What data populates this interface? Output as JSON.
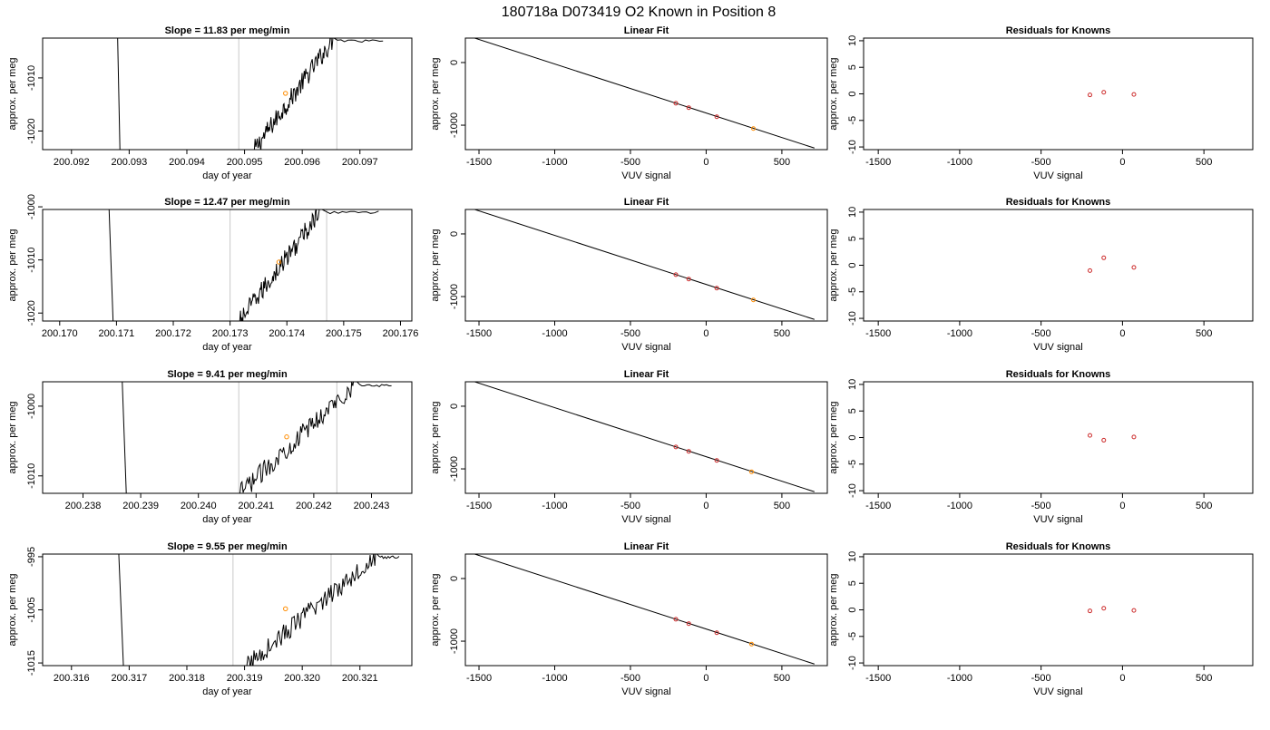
{
  "title": "180718a     D073419   O2 Known in Position  8",
  "colors": {
    "trace": "#000000",
    "marker": "#ff8c00",
    "residual": "#cc2a2a",
    "vline": "#c8c8c8",
    "frame": "#000000"
  },
  "chart_data": [
    {
      "row": 1,
      "time_panel": {
        "type": "line",
        "title": "Slope =  11.83  per meg/min",
        "xlabel": "day of year",
        "ylabel": "approx. per meg",
        "xlim": [
          200.0915,
          200.0979
        ],
        "ylim": [
          -1023.5,
          -1002.5
        ],
        "xticks": [
          {
            "v": 200.092,
            "label": "200.092"
          },
          {
            "v": 200.093,
            "label": "200.093"
          },
          {
            "v": 200.094,
            "label": "200.094"
          },
          {
            "v": 200.095,
            "label": "200.095"
          },
          {
            "v": 200.096,
            "label": "200.096"
          },
          {
            "v": 200.097,
            "label": "200.097"
          }
        ],
        "yticks": [
          {
            "v": -1020,
            "label": "-1020"
          },
          {
            "v": -1010,
            "label": "-1010"
          }
        ],
        "vlines": [
          200.0949,
          200.0966
        ],
        "drop": [
          [
            200.0928,
            -1002.5
          ],
          [
            200.09284,
            -1023.5
          ]
        ],
        "trace_start": [
          200.09517,
          -1023.5
        ],
        "trace_end": [
          200.09655,
          -1002.5
        ],
        "marker": [
          200.09571,
          -1012.9
        ]
      },
      "fit_panel": {
        "type": "scatter",
        "title": "Linear Fit",
        "xlabel": "VUV signal",
        "ylabel": "approx. per meg",
        "xlim": [
          -1590,
          800
        ],
        "ylim": [
          -1390,
          390
        ],
        "xticks": [
          {
            "v": -1500,
            "label": "-1500"
          },
          {
            "v": -1000,
            "label": "-1000"
          },
          {
            "v": -500,
            "label": "-500"
          },
          {
            "v": 0,
            "label": "0"
          },
          {
            "v": 500,
            "label": "500"
          }
        ],
        "yticks": [
          {
            "v": 0,
            "label": "0"
          },
          {
            "v": -1000,
            "label": "-1000"
          }
        ],
        "line": [
          [
            -1535,
            395
          ],
          [
            715,
            -1365
          ]
        ],
        "knowns": [
          [
            -200,
            -650
          ],
          [
            -115,
            -720
          ],
          [
            70,
            -865
          ]
        ],
        "sample": [
          [
            312,
            -1054
          ]
        ]
      },
      "resid_panel": {
        "type": "scatter",
        "title": "Residuals for Knowns",
        "xlabel": "VUV signal",
        "ylabel": "approx. per meg",
        "xlim": [
          -1590,
          800
        ],
        "ylim": [
          -10.5,
          10.5
        ],
        "xticks": [
          {
            "v": -1500,
            "label": "-1500"
          },
          {
            "v": -1000,
            "label": "-1000"
          },
          {
            "v": -500,
            "label": "-500"
          },
          {
            "v": 0,
            "label": "0"
          },
          {
            "v": 500,
            "label": "500"
          }
        ],
        "yticks": [
          {
            "v": 10,
            "label": "10"
          },
          {
            "v": 5,
            "label": "5"
          },
          {
            "v": 0,
            "label": "0"
          },
          {
            "v": -5,
            "label": "-5"
          },
          {
            "v": -10,
            "label": "-10"
          }
        ],
        "points": [
          [
            -200,
            -0.2
          ],
          [
            -115,
            0.3
          ],
          [
            70,
            -0.1
          ]
        ]
      }
    },
    {
      "row": 2,
      "time_panel": {
        "type": "line",
        "title": "Slope =  12.47  per meg/min",
        "xlabel": "day of year",
        "ylabel": "approx. per meg",
        "xlim": [
          200.1697,
          200.1762
        ],
        "ylim": [
          -1021.5,
          -1000.5
        ],
        "xticks": [
          {
            "v": 200.17,
            "label": "200.170"
          },
          {
            "v": 200.171,
            "label": "200.171"
          },
          {
            "v": 200.172,
            "label": "200.172"
          },
          {
            "v": 200.173,
            "label": "200.173"
          },
          {
            "v": 200.174,
            "label": "200.174"
          },
          {
            "v": 200.175,
            "label": "200.175"
          },
          {
            "v": 200.176,
            "label": "200.176"
          }
        ],
        "yticks": [
          {
            "v": -1000,
            "label": "-1000"
          },
          {
            "v": -1010,
            "label": "-1010"
          },
          {
            "v": -1020,
            "label": "-1020"
          }
        ],
        "vlines": [
          200.173,
          200.1747
        ],
        "drop": [
          [
            200.17087,
            -1000.5
          ],
          [
            200.17094,
            -1021.5
          ]
        ],
        "trace_start": [
          200.17317,
          -1021.5
        ],
        "trace_end": [
          200.17462,
          -1000.5
        ],
        "marker": [
          200.17386,
          -1010.4
        ]
      },
      "fit_panel": {
        "type": "scatter",
        "title": "Linear Fit",
        "xlabel": "VUV signal",
        "ylabel": "approx. per meg",
        "xlim": [
          -1590,
          800
        ],
        "ylim": [
          -1390,
          390
        ],
        "xticks": [
          {
            "v": -1500,
            "label": "-1500"
          },
          {
            "v": -1000,
            "label": "-1000"
          },
          {
            "v": -500,
            "label": "-500"
          },
          {
            "v": 0,
            "label": "0"
          },
          {
            "v": 500,
            "label": "500"
          }
        ],
        "yticks": [
          {
            "v": 0,
            "label": "0"
          },
          {
            "v": -1000,
            "label": "-1000"
          }
        ],
        "line": [
          [
            -1535,
            395
          ],
          [
            715,
            -1365
          ]
        ],
        "knowns": [
          [
            -200,
            -650
          ],
          [
            -115,
            -720
          ],
          [
            70,
            -865
          ]
        ],
        "sample": [
          [
            312,
            -1054
          ]
        ]
      },
      "resid_panel": {
        "type": "scatter",
        "title": "Residuals for Knowns",
        "xlabel": "VUV signal",
        "ylabel": "approx. per meg",
        "xlim": [
          -1590,
          800
        ],
        "ylim": [
          -10.5,
          10.5
        ],
        "xticks": [
          {
            "v": -1500,
            "label": "-1500"
          },
          {
            "v": -1000,
            "label": "-1000"
          },
          {
            "v": -500,
            "label": "-500"
          },
          {
            "v": 0,
            "label": "0"
          },
          {
            "v": 500,
            "label": "500"
          }
        ],
        "yticks": [
          {
            "v": 10,
            "label": "10"
          },
          {
            "v": 5,
            "label": "5"
          },
          {
            "v": 0,
            "label": "0"
          },
          {
            "v": -5,
            "label": "-5"
          },
          {
            "v": -10,
            "label": "-10"
          }
        ],
        "points": [
          [
            -200,
            -1.0
          ],
          [
            -115,
            1.4
          ],
          [
            70,
            -0.4
          ]
        ]
      }
    },
    {
      "row": 3,
      "time_panel": {
        "type": "line",
        "title": "Slope =  9.41  per meg/min",
        "xlabel": "day of year",
        "ylabel": "approx. per meg",
        "xlim": [
          200.2373,
          200.2437
        ],
        "ylim": [
          -1012.5,
          -996.5
        ],
        "xticks": [
          {
            "v": 200.238,
            "label": "200.238"
          },
          {
            "v": 200.239,
            "label": "200.239"
          },
          {
            "v": 200.24,
            "label": "200.240"
          },
          {
            "v": 200.241,
            "label": "200.241"
          },
          {
            "v": 200.242,
            "label": "200.242"
          },
          {
            "v": 200.243,
            "label": "200.243"
          }
        ],
        "yticks": [
          {
            "v": -1000,
            "label": "-1000"
          },
          {
            "v": -1010,
            "label": "-1010"
          }
        ],
        "vlines": [
          200.2407,
          200.2424
        ],
        "drop": [
          [
            200.23868,
            -996.5
          ],
          [
            200.23875,
            -1012.5
          ]
        ],
        "trace_start": [
          200.24072,
          -1012.5
        ],
        "trace_end": [
          200.24275,
          -996.5
        ],
        "marker": [
          200.24153,
          -1004.4
        ]
      },
      "fit_panel": {
        "type": "scatter",
        "title": "Linear Fit",
        "xlabel": "VUV signal",
        "ylabel": "approx. per meg",
        "xlim": [
          -1590,
          800
        ],
        "ylim": [
          -1390,
          390
        ],
        "xticks": [
          {
            "v": -1500,
            "label": "-1500"
          },
          {
            "v": -1000,
            "label": "-1000"
          },
          {
            "v": -500,
            "label": "-500"
          },
          {
            "v": 0,
            "label": "0"
          },
          {
            "v": 500,
            "label": "500"
          }
        ],
        "yticks": [
          {
            "v": 0,
            "label": "0"
          },
          {
            "v": -1000,
            "label": "-1000"
          }
        ],
        "line": [
          [
            -1535,
            395
          ],
          [
            715,
            -1365
          ]
        ],
        "knowns": [
          [
            -200,
            -650
          ],
          [
            -115,
            -720
          ],
          [
            70,
            -865
          ]
        ],
        "sample": [
          [
            300,
            -1047
          ]
        ]
      },
      "resid_panel": {
        "type": "scatter",
        "title": "Residuals for Knowns",
        "xlabel": "VUV signal",
        "ylabel": "approx. per meg",
        "xlim": [
          -1590,
          800
        ],
        "ylim": [
          -10.5,
          10.5
        ],
        "xticks": [
          {
            "v": -1500,
            "label": "-1500"
          },
          {
            "v": -1000,
            "label": "-1000"
          },
          {
            "v": -500,
            "label": "-500"
          },
          {
            "v": 0,
            "label": "0"
          },
          {
            "v": 500,
            "label": "500"
          }
        ],
        "yticks": [
          {
            "v": 10,
            "label": "10"
          },
          {
            "v": 5,
            "label": "5"
          },
          {
            "v": 0,
            "label": "0"
          },
          {
            "v": -5,
            "label": "-5"
          },
          {
            "v": -10,
            "label": "-10"
          }
        ],
        "points": [
          [
            -200,
            0.4
          ],
          [
            -115,
            -0.5
          ],
          [
            70,
            0.1
          ]
        ]
      }
    },
    {
      "row": 4,
      "time_panel": {
        "type": "line",
        "title": "Slope =  9.55  per meg/min",
        "xlabel": "day of year",
        "ylabel": "approx. per meg",
        "xlim": [
          200.3155,
          200.3219
        ],
        "ylim": [
          -1015.5,
          -994.5
        ],
        "xticks": [
          {
            "v": 200.316,
            "label": "200.316"
          },
          {
            "v": 200.317,
            "label": "200.317"
          },
          {
            "v": 200.318,
            "label": "200.318"
          },
          {
            "v": 200.319,
            "label": "200.319"
          },
          {
            "v": 200.32,
            "label": "200.320"
          },
          {
            "v": 200.321,
            "label": "200.321"
          }
        ],
        "yticks": [
          {
            "v": -995,
            "label": "-995"
          },
          {
            "v": -1005,
            "label": "-1005"
          },
          {
            "v": -1015,
            "label": "-1015"
          }
        ],
        "vlines": [
          200.3188,
          200.3205
        ],
        "drop": [
          [
            200.31682,
            -994.5
          ],
          [
            200.3169,
            -1015.5
          ]
        ],
        "trace_start": [
          200.31904,
          -1015.5
        ],
        "trace_end": [
          200.3213,
          -994.5
        ],
        "marker": [
          200.31971,
          -1004.8
        ]
      },
      "fit_panel": {
        "type": "scatter",
        "title": "Linear Fit",
        "xlabel": "VUV signal",
        "ylabel": "approx. per meg",
        "xlim": [
          -1590,
          800
        ],
        "ylim": [
          -1390,
          390
        ],
        "xticks": [
          {
            "v": -1500,
            "label": "-1500"
          },
          {
            "v": -1000,
            "label": "-1000"
          },
          {
            "v": -500,
            "label": "-500"
          },
          {
            "v": 0,
            "label": "0"
          },
          {
            "v": 500,
            "label": "500"
          }
        ],
        "yticks": [
          {
            "v": 0,
            "label": "0"
          },
          {
            "v": -1000,
            "label": "-1000"
          }
        ],
        "line": [
          [
            -1535,
            395
          ],
          [
            715,
            -1365
          ]
        ],
        "knowns": [
          [
            -200,
            -650
          ],
          [
            -115,
            -720
          ],
          [
            70,
            -865
          ]
        ],
        "sample": [
          [
            300,
            -1047
          ]
        ]
      },
      "resid_panel": {
        "type": "scatter",
        "title": "Residuals for Knowns",
        "xlabel": "VUV signal",
        "ylabel": "approx. per meg",
        "xlim": [
          -1590,
          800
        ],
        "ylim": [
          -10.5,
          10.5
        ],
        "xticks": [
          {
            "v": -1500,
            "label": "-1500"
          },
          {
            "v": -1000,
            "label": "-1000"
          },
          {
            "v": -500,
            "label": "-500"
          },
          {
            "v": 0,
            "label": "0"
          },
          {
            "v": 500,
            "label": "500"
          }
        ],
        "yticks": [
          {
            "v": 10,
            "label": "10"
          },
          {
            "v": 5,
            "label": "5"
          },
          {
            "v": 0,
            "label": "0"
          },
          {
            "v": -5,
            "label": "-5"
          },
          {
            "v": -10,
            "label": "-10"
          }
        ],
        "points": [
          [
            -200,
            -0.2
          ],
          [
            -115,
            0.3
          ],
          [
            70,
            -0.1
          ]
        ]
      }
    }
  ]
}
